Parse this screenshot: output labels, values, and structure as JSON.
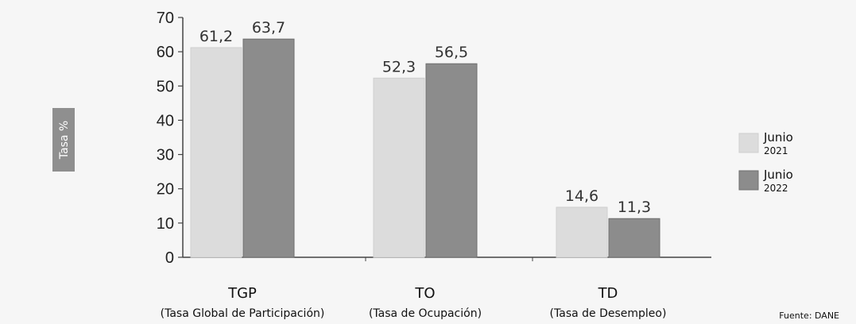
{
  "chart_data": {
    "type": "bar",
    "ylabel": "Tasa %",
    "ylim": [
      0,
      70
    ],
    "yticks": [
      0,
      10,
      20,
      30,
      40,
      50,
      60,
      70
    ],
    "categories": [
      {
        "label": "TGP",
        "sublabel": "(Tasa Global de Participación)"
      },
      {
        "label": "TO",
        "sublabel": "(Tasa de Ocupación)"
      },
      {
        "label": "TD",
        "sublabel": "(Tasa de Desempleo)"
      }
    ],
    "series": [
      {
        "name": "Junio 2021",
        "legend_line1": "Junio",
        "legend_line2": "2021",
        "color": "#dcdcdc",
        "values": [
          61.2,
          52.3,
          14.6
        ],
        "labels": [
          "61,2",
          "52,3",
          "14,6"
        ]
      },
      {
        "name": "Junio 2022",
        "legend_line1": "Junio",
        "legend_line2": "2022",
        "color": "#8c8c8c",
        "values": [
          63.7,
          56.5,
          11.3
        ],
        "labels": [
          "63,7",
          "56,5",
          "11,3"
        ]
      }
    ],
    "grid": false,
    "legend_position": "right",
    "source": "Fuente: DANE"
  }
}
